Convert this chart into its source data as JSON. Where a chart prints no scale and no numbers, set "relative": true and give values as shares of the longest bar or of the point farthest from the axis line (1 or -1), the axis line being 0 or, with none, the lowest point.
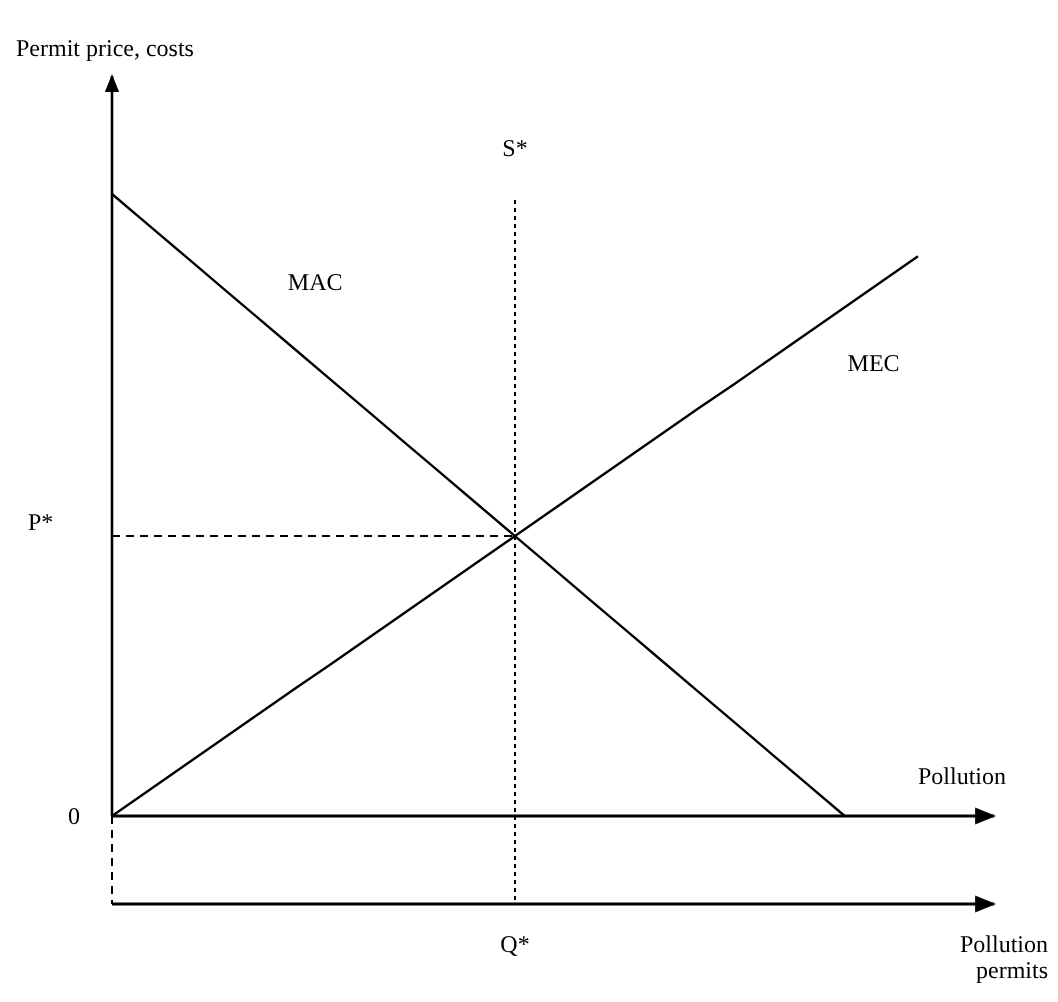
{
  "chart_data": {
    "type": "line",
    "relative": true,
    "xlabel": "Pollution",
    "categories": [
      null,
      null,
      null,
      null,
      null,
      null,
      null,
      null,
      null,
      null,
      null,
      null,
      null,
      null,
      null,
      null,
      null,
      null,
      null,
      null,
      null,
      null,
      null
    ],
    "series": [
      {
        "name": "MAC",
        "color": "#000000",
        "values": [
          1,
          0.95,
          0.9,
          0.85,
          0.8,
          0.75,
          0.7,
          0.65,
          0.6,
          0.55,
          0.5,
          0.45,
          0.4,
          0.35,
          0.3,
          0.25,
          0.2,
          0.15,
          0.1,
          0.05,
          0,
          null,
          null
        ]
      },
      {
        "name": "MEC",
        "color": "#000000",
        "values": [
          0,
          0.041,
          0.082,
          0.123,
          0.164,
          0.205,
          0.245,
          0.286,
          0.327,
          0.368,
          0.409,
          0.45,
          0.491,
          0.532,
          0.573,
          0.614,
          0.655,
          0.695,
          0.736,
          0.777,
          0.818,
          0.859,
          0.9
        ]
      }
    ],
    "ref_lines": [
      {
        "axis": "y",
        "value": 0.45,
        "label": "P*",
        "line_style": "dashed"
      }
    ],
    "annotations": [
      "Permit price, costs",
      "0",
      "Q*",
      "S*",
      "Pollution permits"
    ],
    "marker": "none",
    "line_style": "solid"
  }
}
